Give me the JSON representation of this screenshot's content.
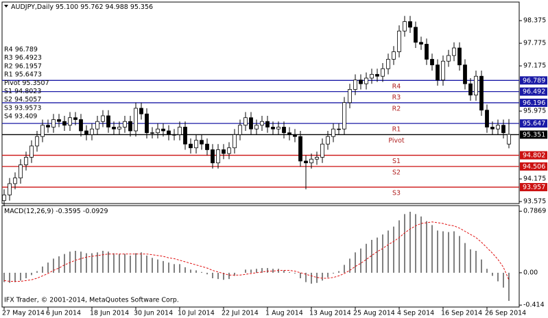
{
  "chart_data": [
    {
      "type": "candlestick",
      "title": "AUDJPY,Daily",
      "ohlc_labels": [
        "95.100",
        "95.762",
        "94.988",
        "95.356"
      ],
      "categories": [
        "27 May 2014",
        null,
        null,
        null,
        null,
        null,
        null,
        null,
        "6 Jun 2014",
        null,
        null,
        null,
        null,
        null,
        null,
        null,
        "18 Jun 2014",
        null,
        null,
        null,
        null,
        null,
        null,
        null,
        "30 Jun 2014",
        null,
        null,
        null,
        null,
        null,
        null,
        null,
        "10 Jul 2014",
        null,
        null,
        null,
        null,
        null,
        null,
        null,
        "22 Jul 2014",
        null,
        null,
        null,
        null,
        null,
        null,
        null,
        "1 Aug 2014",
        null,
        null,
        null,
        null,
        null,
        null,
        null,
        "13 Aug 2014",
        null,
        null,
        null,
        null,
        null,
        null,
        null,
        "25 Aug 2014",
        null,
        null,
        null,
        null,
        null,
        null,
        null,
        "4 Sep 2014",
        null,
        null,
        null,
        null,
        null,
        null,
        null,
        "16 Sep 2014",
        null,
        null,
        null,
        null,
        null,
        null,
        null,
        "26 Sep 2014",
        null,
        null,
        null,
        null
      ],
      "open": [
        93.6,
        93.75,
        94.05,
        94.2,
        94.55,
        94.75,
        95.05,
        95.3,
        95.6,
        95.55,
        95.75,
        95.7,
        95.6,
        95.8,
        95.75,
        95.45,
        95.35,
        95.5,
        95.7,
        95.85,
        95.55,
        95.5,
        95.55,
        95.7,
        95.45,
        96.05,
        95.9,
        95.4,
        95.4,
        95.5,
        95.45,
        95.35,
        95.35,
        95.55,
        95.1,
        95.0,
        95.2,
        95.1,
        94.95,
        94.6,
        94.95,
        94.85,
        95.0,
        95.35,
        95.6,
        95.8,
        95.5,
        95.6,
        95.7,
        95.55,
        95.5,
        95.55,
        95.4,
        95.35,
        95.3,
        94.65,
        94.6,
        94.7,
        94.75,
        95.1,
        95.3,
        95.5,
        95.5,
        96.2,
        96.55,
        96.8,
        96.7,
        96.85,
        96.95,
        96.9,
        97.1,
        97.35,
        97.55,
        98.1,
        98.35,
        98.2,
        97.8,
        97.75,
        97.35,
        97.2,
        96.8,
        97.3,
        97.45,
        97.65,
        97.2,
        96.7,
        96.4,
        96.9,
        96.0,
        95.55,
        95.5,
        95.6,
        95.1
      ],
      "high": [
        93.9,
        94.2,
        94.35,
        94.7,
        94.9,
        95.2,
        95.45,
        95.75,
        95.75,
        95.9,
        95.9,
        95.85,
        95.95,
        95.95,
        95.9,
        95.6,
        95.65,
        95.85,
        96.0,
        96.0,
        95.7,
        95.7,
        95.85,
        95.85,
        96.2,
        96.2,
        96.05,
        95.55,
        95.65,
        95.65,
        95.6,
        95.5,
        95.7,
        95.7,
        95.25,
        95.35,
        95.35,
        95.25,
        95.1,
        95.1,
        95.1,
        95.15,
        95.5,
        95.75,
        95.95,
        95.95,
        95.75,
        95.85,
        95.85,
        95.7,
        95.7,
        95.7,
        95.55,
        95.5,
        95.45,
        94.8,
        94.85,
        94.9,
        95.25,
        95.45,
        95.65,
        95.65,
        96.35,
        96.7,
        96.95,
        96.95,
        97.0,
        97.1,
        97.1,
        97.25,
        97.5,
        97.7,
        98.25,
        98.5,
        98.5,
        98.35,
        97.95,
        97.9,
        97.5,
        97.35,
        97.45,
        97.6,
        97.8,
        97.8,
        97.35,
        96.85,
        97.05,
        97.05,
        96.15,
        95.7,
        95.75,
        95.75,
        95.762
      ],
      "low": [
        93.45,
        93.6,
        93.9,
        94.05,
        94.4,
        94.6,
        94.9,
        95.15,
        95.4,
        95.4,
        95.55,
        95.45,
        95.45,
        95.6,
        95.3,
        95.2,
        95.2,
        95.35,
        95.55,
        95.4,
        95.35,
        95.35,
        95.4,
        95.3,
        95.3,
        95.75,
        95.25,
        95.25,
        95.25,
        95.3,
        95.2,
        95.2,
        95.2,
        94.95,
        94.85,
        94.85,
        94.95,
        94.8,
        94.45,
        94.45,
        94.7,
        94.7,
        94.85,
        95.2,
        95.45,
        95.35,
        95.35,
        95.45,
        95.4,
        95.35,
        95.35,
        95.25,
        95.2,
        95.15,
        94.5,
        93.9,
        94.45,
        94.55,
        94.6,
        94.95,
        95.15,
        95.35,
        95.35,
        96.05,
        96.4,
        96.55,
        96.55,
        96.7,
        96.75,
        96.75,
        96.95,
        97.2,
        97.4,
        97.95,
        98.05,
        97.65,
        97.6,
        97.2,
        97.05,
        96.65,
        96.65,
        97.15,
        97.3,
        97.05,
        96.55,
        96.25,
        96.25,
        95.85,
        95.4,
        95.35,
        95.35,
        95.25,
        94.988
      ],
      "close": [
        93.75,
        94.05,
        94.2,
        94.55,
        94.75,
        95.05,
        95.3,
        95.6,
        95.55,
        95.75,
        95.7,
        95.6,
        95.8,
        95.75,
        95.45,
        95.35,
        95.5,
        95.7,
        95.85,
        95.55,
        95.5,
        95.55,
        95.7,
        95.45,
        96.05,
        95.9,
        95.4,
        95.4,
        95.5,
        95.45,
        95.35,
        95.35,
        95.55,
        95.1,
        95.0,
        95.2,
        95.1,
        94.95,
        94.6,
        94.95,
        94.85,
        95.0,
        95.35,
        95.6,
        95.8,
        95.5,
        95.6,
        95.7,
        95.55,
        95.5,
        95.55,
        95.4,
        95.35,
        95.3,
        94.65,
        94.6,
        94.7,
        94.75,
        95.1,
        95.3,
        95.5,
        95.5,
        96.2,
        96.55,
        96.8,
        96.7,
        96.85,
        96.95,
        96.9,
        97.1,
        97.35,
        97.55,
        98.1,
        98.35,
        98.2,
        97.8,
        97.75,
        97.35,
        97.2,
        96.8,
        97.3,
        97.45,
        97.65,
        97.2,
        96.7,
        96.4,
        96.9,
        96.0,
        95.55,
        95.5,
        95.6,
        95.4,
        95.356
      ],
      "up_color": "#ffffff",
      "down_color": "#000000",
      "ylim": [
        93.54,
        98.85
      ],
      "yticks": [
        98.375,
        97.775,
        97.175,
        95.975,
        94.175,
        93.575
      ],
      "levels": [
        {
          "name": "R4",
          "value": 96.789,
          "label": "96.789",
          "color": "#1a1aa6"
        },
        {
          "name": "R3",
          "value": 96.4923,
          "label": "96.492",
          "color": "#1a1aa6"
        },
        {
          "name": "R2",
          "value": 96.1957,
          "label": "96.196",
          "color": "#1a1aa6"
        },
        {
          "name": "R1",
          "value": 95.6473,
          "label": "95.647",
          "color": "#1a1aa6"
        },
        {
          "name": "Pivot",
          "value": 95.3507,
          "label": "95.351",
          "color": "#000000"
        },
        {
          "name": "S1",
          "value": 94.8023,
          "label": "94.802",
          "color": "#cc1111"
        },
        {
          "name": "S2",
          "value": 94.5057,
          "label": "94.506",
          "color": "#cc1111"
        },
        {
          "name": "S3",
          "value": 93.9573,
          "label": "93.957",
          "color": "#cc1111"
        },
        {
          "name": "S4",
          "value": 93.409
        }
      ],
      "level_text_color": "#b02020"
    },
    {
      "type": "macd",
      "title": "MACD(12,26,9)",
      "histogram": [
        -0.12,
        -0.13,
        -0.12,
        -0.1,
        -0.07,
        -0.03,
        0.02,
        0.08,
        0.13,
        0.18,
        0.21,
        0.24,
        0.27,
        0.28,
        0.27,
        0.25,
        0.25,
        0.26,
        0.28,
        0.27,
        0.25,
        0.24,
        0.24,
        0.22,
        0.25,
        0.26,
        0.22,
        0.19,
        0.17,
        0.15,
        0.13,
        0.11,
        0.11,
        0.07,
        0.04,
        0.03,
        0.01,
        -0.02,
        -0.07,
        -0.08,
        -0.09,
        -0.08,
        -0.04,
        0.0,
        0.04,
        0.04,
        0.05,
        0.06,
        0.06,
        0.05,
        0.05,
        0.03,
        0.01,
        -0.01,
        -0.07,
        -0.12,
        -0.14,
        -0.13,
        -0.1,
        -0.06,
        -0.01,
        0.02,
        0.1,
        0.18,
        0.26,
        0.31,
        0.37,
        0.42,
        0.45,
        0.49,
        0.54,
        0.59,
        0.67,
        0.75,
        0.78,
        0.75,
        0.72,
        0.66,
        0.61,
        0.54,
        0.53,
        0.52,
        0.53,
        0.47,
        0.38,
        0.3,
        0.28,
        0.17,
        0.05,
        -0.04,
        -0.11,
        -0.19,
        -0.3595
      ],
      "signal": [
        -0.1,
        -0.11,
        -0.11,
        -0.11,
        -0.1,
        -0.09,
        -0.07,
        -0.04,
        -0.01,
        0.03,
        0.06,
        0.1,
        0.13,
        0.16,
        0.18,
        0.2,
        0.21,
        0.22,
        0.23,
        0.24,
        0.24,
        0.24,
        0.24,
        0.24,
        0.24,
        0.24,
        0.24,
        0.23,
        0.22,
        0.21,
        0.19,
        0.18,
        0.16,
        0.14,
        0.12,
        0.1,
        0.08,
        0.06,
        0.03,
        0.01,
        -0.01,
        -0.03,
        -0.03,
        -0.03,
        -0.02,
        -0.01,
        0.0,
        0.01,
        0.02,
        0.02,
        0.03,
        0.03,
        0.03,
        0.02,
        0.0,
        -0.02,
        -0.04,
        -0.06,
        -0.07,
        -0.07,
        -0.06,
        -0.04,
        -0.01,
        0.03,
        0.08,
        0.12,
        0.17,
        0.22,
        0.27,
        0.31,
        0.36,
        0.4,
        0.45,
        0.51,
        0.56,
        0.6,
        0.63,
        0.64,
        0.65,
        0.64,
        0.63,
        0.61,
        0.6,
        0.57,
        0.53,
        0.49,
        0.45,
        0.39,
        0.32,
        0.25,
        0.17,
        0.07,
        -0.0929
      ],
      "histogram_color": "#000000",
      "signal_color": "#e01010",
      "ylim": [
        -0.43,
        0.85
      ],
      "yticks": [
        0.7869,
        {
          "value": 0,
          "label": "0.00"
        },
        -0.414
      ]
    }
  ],
  "footer": "IFX Trader, © 2001-2014, MetaQuotes Software Corp."
}
